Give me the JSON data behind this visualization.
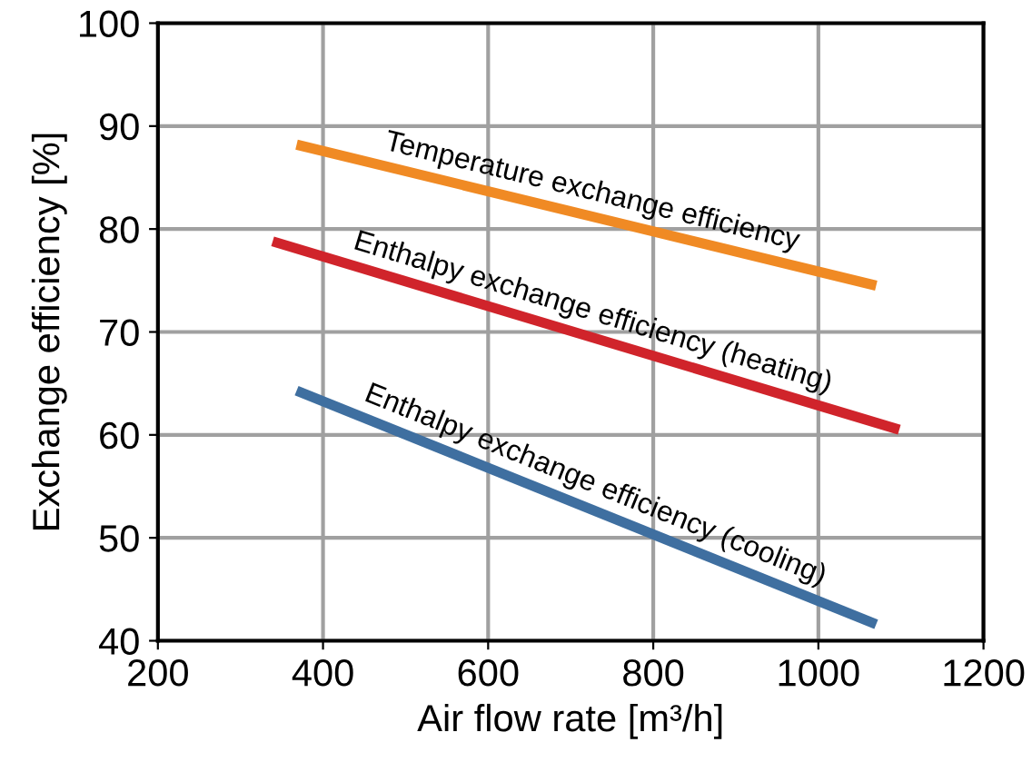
{
  "chart_data": {
    "type": "line",
    "xlabel": "Air flow rate [m³/h]",
    "ylabel": "Exchange efficiency [%]",
    "xlim": [
      200,
      1200
    ],
    "xticks": [
      200,
      400,
      600,
      800,
      1000,
      1200
    ],
    "ylim": [
      40,
      100
    ],
    "yticks": [
      40,
      50,
      60,
      70,
      80,
      90,
      100
    ],
    "grid": true,
    "marker": "none",
    "line_style": "solid",
    "series": [
      {
        "name": "Temperature exchange efficiency",
        "color": "#f08a24",
        "x": [
          368,
          1070
        ],
        "values": [
          88.2,
          74.5
        ]
      },
      {
        "name": "Enthalpy exchange efficiency (heating)",
        "color": "#d0242b",
        "x": [
          339,
          1098
        ],
        "values": [
          78.8,
          60.5
        ]
      },
      {
        "name": "Enthalpy exchange efficiency (cooling)",
        "color": "#3f6fa0",
        "x": [
          368,
          1070
        ],
        "values": [
          64.3,
          41.6
        ]
      }
    ]
  }
}
